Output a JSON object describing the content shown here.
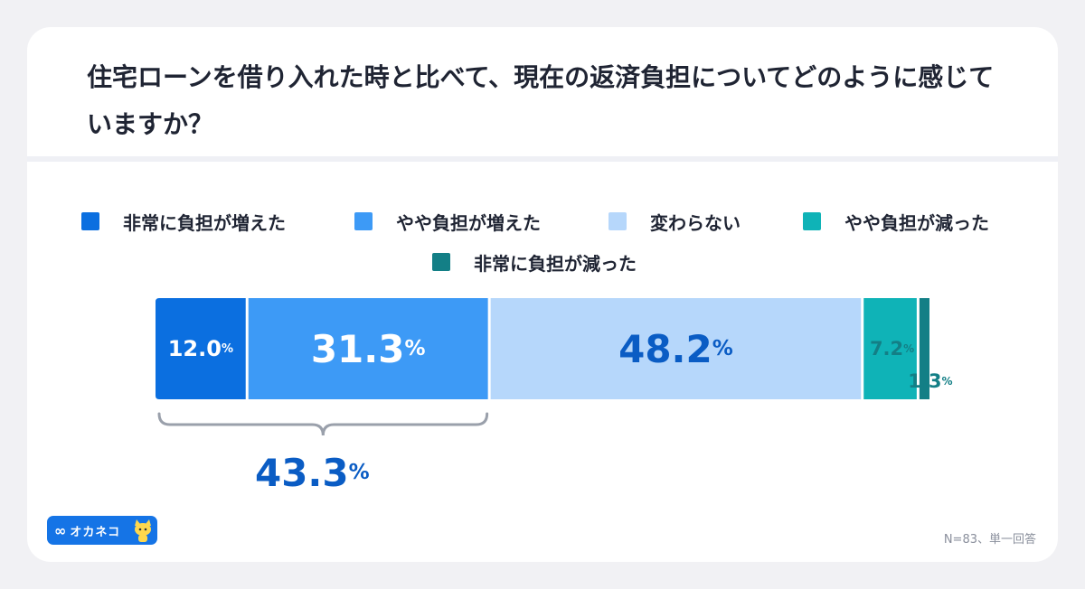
{
  "title": "住宅ローンを借り入れた時と比べて、現在の返済負担についてどのように感じていますか？",
  "note": "N=83、単一回答",
  "logo": {
    "symbol": "∞",
    "text": "オカネコ"
  },
  "chart_data": {
    "type": "bar",
    "orientation": "horizontal-stacked-100",
    "title": "住宅ローンを借り入れた時と比べて、現在の返済負担についてどのように感じていますか？",
    "series": [
      {
        "name": "非常に負担が増えた",
        "value": 12.0,
        "label": "12.0",
        "color": "#0b6fe0"
      },
      {
        "name": "やや負担が増えた",
        "value": 31.3,
        "label": "31.3",
        "color": "#3d9af6"
      },
      {
        "name": "変わらない",
        "value": 48.2,
        "label": "48.2",
        "color": "#b6d7fb"
      },
      {
        "name": "やや負担が減った",
        "value": 7.2,
        "label": "7.2",
        "color": "#0fb3b7"
      },
      {
        "name": "非常に負担が減った",
        "value": 1.3,
        "label": "1.3",
        "color": "#137f86"
      }
    ],
    "unit": "%",
    "bracket_total": {
      "value": 43.3,
      "label": "43.3",
      "covers": [
        "非常に負担が増えた",
        "やや負担が増えた"
      ]
    },
    "legend_position": "top"
  },
  "colors": {
    "label_dark_blue": "#0a5cc4",
    "label_teal": "#137f86",
    "bracket": "#9aa0ab"
  }
}
